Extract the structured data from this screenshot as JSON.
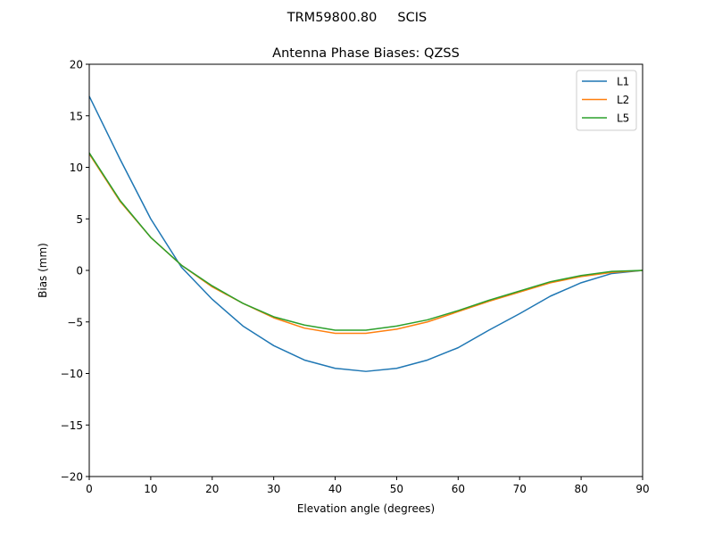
{
  "chart_data": {
    "type": "line",
    "suptitle": "TRM59800.80     SCIS",
    "title": "Antenna Phase Biases: QZSS",
    "xlabel": "Elevation angle (degrees)",
    "ylabel": "Bias (mm)",
    "xlim": [
      0,
      90
    ],
    "ylim": [
      -20,
      20
    ],
    "xticks": [
      0,
      10,
      20,
      30,
      40,
      50,
      60,
      70,
      80,
      90
    ],
    "yticks": [
      -20,
      -15,
      -10,
      -5,
      0,
      5,
      10,
      15,
      20
    ],
    "ytick_labels": [
      "−20",
      "−15",
      "−10",
      "−5",
      "0",
      "5",
      "10",
      "15",
      "20"
    ],
    "grid": false,
    "legend_position": "top-right",
    "x": [
      0,
      5,
      10,
      15,
      20,
      25,
      30,
      35,
      40,
      45,
      50,
      55,
      60,
      65,
      70,
      75,
      80,
      85,
      90
    ],
    "series": [
      {
        "name": "L1",
        "color": "#1f77b4",
        "values": [
          16.9,
          10.8,
          5.0,
          0.3,
          -2.8,
          -5.4,
          -7.3,
          -8.7,
          -9.5,
          -9.8,
          -9.5,
          -8.7,
          -7.5,
          -5.8,
          -4.2,
          -2.5,
          -1.2,
          -0.3,
          0.0
        ]
      },
      {
        "name": "L2",
        "color": "#ff7f0e",
        "values": [
          11.3,
          6.7,
          3.2,
          0.5,
          -1.6,
          -3.2,
          -4.6,
          -5.6,
          -6.1,
          -6.1,
          -5.7,
          -5.0,
          -4.0,
          -3.0,
          -2.1,
          -1.2,
          -0.6,
          -0.2,
          0.0
        ]
      },
      {
        "name": "L5",
        "color": "#2ca02c",
        "values": [
          11.4,
          6.8,
          3.2,
          0.5,
          -1.5,
          -3.2,
          -4.5,
          -5.3,
          -5.8,
          -5.8,
          -5.4,
          -4.8,
          -3.9,
          -2.9,
          -2.0,
          -1.1,
          -0.5,
          -0.1,
          0.0
        ]
      }
    ]
  }
}
